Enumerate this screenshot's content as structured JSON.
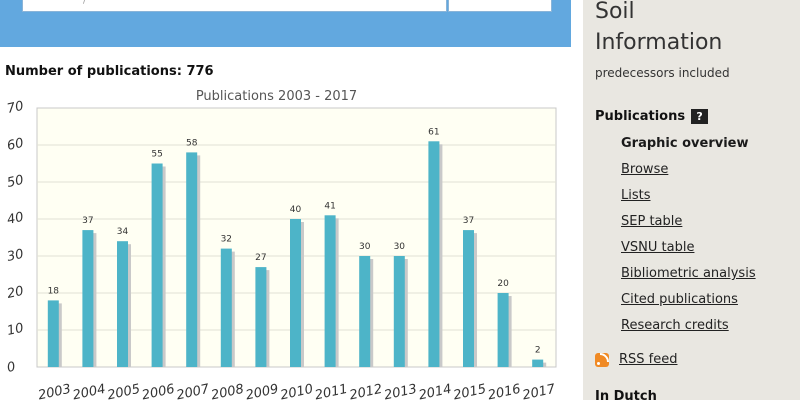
{
  "search": {
    "placeholder_fragment": "/"
  },
  "publications": {
    "count_label": "Number of publications:",
    "count_value": "776"
  },
  "chart_data": {
    "type": "bar",
    "title": "Publications 2003 - 2017",
    "categories": [
      "2003",
      "2004",
      "2005",
      "2006",
      "2007",
      "2008",
      "2009",
      "2010",
      "2011",
      "2012",
      "2013",
      "2014",
      "2015",
      "2016",
      "2017"
    ],
    "values": [
      18,
      37,
      34,
      55,
      58,
      32,
      27,
      40,
      41,
      30,
      30,
      61,
      37,
      20,
      2
    ],
    "ylim": [
      0,
      70
    ],
    "yticks": [
      0,
      10,
      20,
      30,
      40,
      50,
      60,
      70
    ],
    "grid": true,
    "bar_color": "#4db4c8",
    "bar_shadow_color": "#c9c9c9",
    "plot_background": "#fffff3",
    "plot_border_color": "#c8c8c8"
  },
  "sidebar": {
    "title_line1": "Soil",
    "title_line2": "Information",
    "subtitle": "predecessors included",
    "publications_heading": "Publications",
    "help_label": "?",
    "nav": [
      {
        "label": "Graphic overview",
        "active": true
      },
      {
        "label": "Browse"
      },
      {
        "label": "Lists"
      },
      {
        "label": "SEP table"
      },
      {
        "label": "VSNU table"
      },
      {
        "label": "Bibliometric analysis"
      },
      {
        "label": "Cited publications"
      },
      {
        "label": "Research credits"
      }
    ],
    "rss_label": "RSS feed",
    "dutch_heading": "In Dutch",
    "background": "#e9e7e1"
  },
  "colors": {
    "search_band": "#62a8df"
  }
}
